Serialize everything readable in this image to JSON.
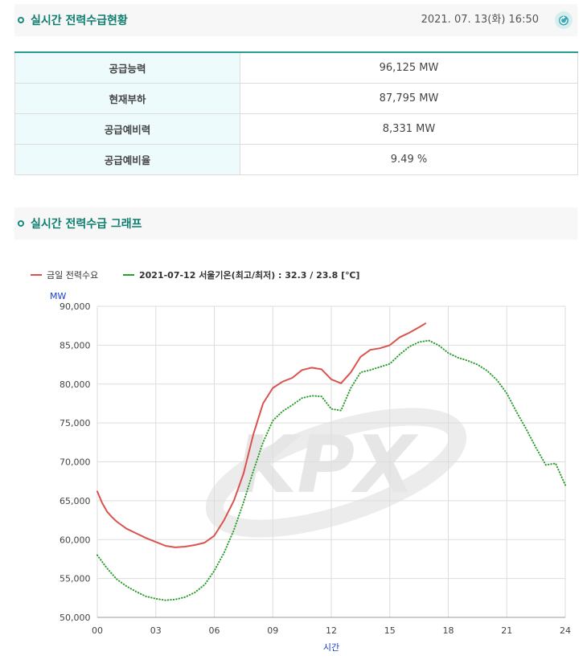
{
  "header": {
    "title": "실시간 전력수급현황",
    "timestamp": "2021. 07. 13(화) 16:50"
  },
  "supply_table": [
    {
      "label": "공급능력",
      "value": "96,125 MW"
    },
    {
      "label": "현재부하",
      "value": "87,795 MW"
    },
    {
      "label": "공급예비력",
      "value": "8,331 MW"
    },
    {
      "label": "공급예비율",
      "value": "9.49 %"
    }
  ],
  "graph_section": {
    "title": "실시간 전력수급 그래프"
  },
  "chart_data": {
    "type": "line",
    "xlabel": "시간",
    "ylabel": "MW",
    "x_ticks": [
      "00",
      "03",
      "06",
      "09",
      "12",
      "15",
      "18",
      "21",
      "24"
    ],
    "y_ticks": [
      "90,000",
      "85,000",
      "80,000",
      "75,000",
      "70,000",
      "65,000",
      "60,000",
      "55,000",
      "50,000"
    ],
    "xlim": [
      0,
      24
    ],
    "ylim": [
      50000,
      90000
    ],
    "grid": true,
    "legend_position": "top-left",
    "watermark": "KPX",
    "series": [
      {
        "name": "금일 전력수요",
        "color": "#d9534f",
        "style": "solid",
        "x": [
          0,
          0.25,
          0.5,
          0.75,
          1,
          1.5,
          2,
          2.5,
          3,
          3.5,
          4,
          4.5,
          5,
          5.5,
          6,
          6.5,
          7,
          7.5,
          8,
          8.5,
          9,
          9.5,
          10,
          10.5,
          11,
          11.5,
          12,
          12.5,
          13,
          13.5,
          14,
          14.5,
          15,
          15.5,
          16,
          16.5,
          16.83
        ],
        "y": [
          66200,
          64700,
          63600,
          62900,
          62300,
          61400,
          60800,
          60200,
          59700,
          59200,
          59000,
          59100,
          59300,
          59600,
          60500,
          62500,
          65000,
          68500,
          73500,
          77500,
          79500,
          80300,
          80800,
          81800,
          82100,
          81900,
          80600,
          80100,
          81500,
          83500,
          84400,
          84600,
          85000,
          86000,
          86600,
          87300,
          87800
        ]
      },
      {
        "name": "2021-07-12 서울기온(최고/최저) : 32.3 / 23.8 [℃]",
        "color": "#2e9e2e",
        "style": "dotted",
        "x": [
          0,
          0.5,
          1,
          1.5,
          2,
          2.5,
          3,
          3.5,
          4,
          4.5,
          5,
          5.5,
          6,
          6.5,
          7,
          7.5,
          8,
          8.5,
          9,
          9.5,
          10,
          10.5,
          11,
          11.5,
          12,
          12.5,
          13,
          13.5,
          14,
          14.5,
          15,
          15.5,
          16,
          16.5,
          17,
          17.5,
          18,
          18.5,
          19,
          19.5,
          20,
          20.5,
          21,
          21.5,
          22,
          22.5,
          23,
          23.5,
          24
        ],
        "y": [
          58000,
          56300,
          54900,
          54000,
          53300,
          52700,
          52400,
          52200,
          52300,
          52600,
          53200,
          54200,
          56000,
          58300,
          61200,
          64800,
          68800,
          72500,
          75300,
          76500,
          77300,
          78200,
          78500,
          78400,
          76800,
          76600,
          79500,
          81500,
          81800,
          82200,
          82600,
          83800,
          84800,
          85400,
          85600,
          85000,
          84000,
          83400,
          83000,
          82500,
          81700,
          80500,
          78800,
          76400,
          74200,
          71800,
          69600,
          69800,
          67000
        ]
      }
    ]
  }
}
